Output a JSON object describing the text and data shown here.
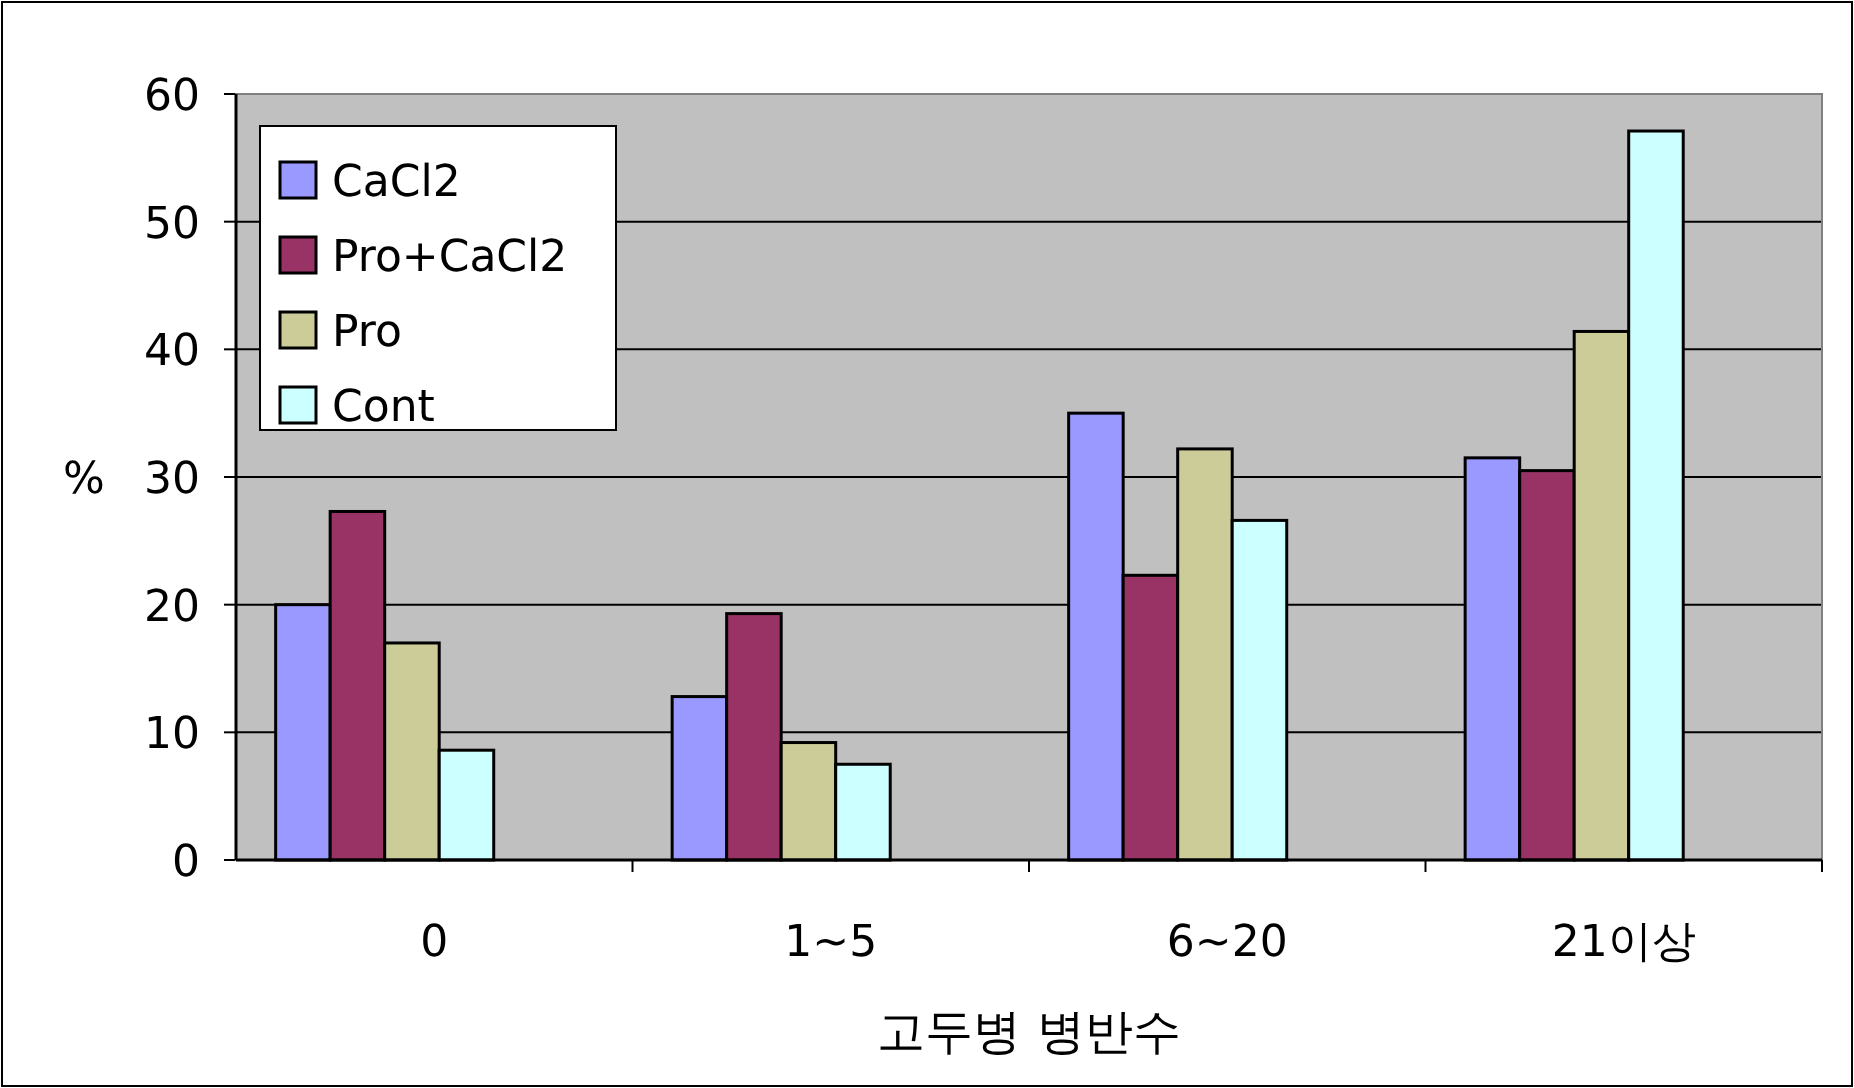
{
  "chart_data": {
    "type": "bar",
    "xlabel": "고두병 병반수",
    "ylabel": "%",
    "categories": [
      "0",
      "1~5",
      "6~20",
      "21이상"
    ],
    "series": [
      {
        "name": "CaCl2",
        "color": "#9999ff",
        "values": [
          20.0,
          12.8,
          35.0,
          31.5
        ]
      },
      {
        "name": "Pro+CaCl2",
        "color": "#993366",
        "values": [
          27.3,
          19.3,
          22.3,
          30.5
        ]
      },
      {
        "name": "Pro",
        "color": "#cccc99",
        "values": [
          17.0,
          9.2,
          32.2,
          41.4
        ]
      },
      {
        "name": "Cont",
        "color": "#ccffff",
        "values": [
          8.6,
          7.5,
          26.6,
          57.1
        ]
      }
    ],
    "ylim": [
      0,
      60
    ],
    "yticks": [
      0,
      10,
      20,
      30,
      40,
      50,
      60
    ],
    "grid": "y",
    "legend": "top left"
  }
}
